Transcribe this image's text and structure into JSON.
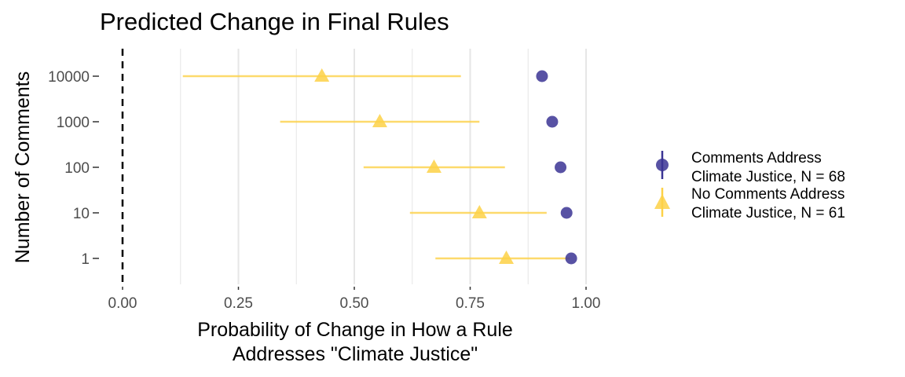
{
  "chart_data": {
    "type": "scatter",
    "title": "Predicted Change in Final Rules",
    "xlabel_lines": [
      "Probability of Change in How a Rule",
      "Addresses \"Climate Justice\""
    ],
    "ylabel": "Number of Comments",
    "xlim": [
      0,
      1
    ],
    "x_ticks": [
      {
        "value": 0.0,
        "label": "0.00"
      },
      {
        "value": 0.25,
        "label": "0.25"
      },
      {
        "value": 0.5,
        "label": "0.50"
      },
      {
        "value": 0.75,
        "label": "0.75"
      },
      {
        "value": 1.0,
        "label": "1.00"
      }
    ],
    "categories": [
      "10000",
      "1000",
      "100",
      "10",
      "1"
    ],
    "reference_line": {
      "x": 0,
      "style": "dashed"
    },
    "grid": "vertical",
    "legend_position": "right",
    "series": [
      {
        "name_lines": [
          "Comments Address",
          "Climate Justice, N = 68"
        ],
        "marker": "circle",
        "color": "#3b3494",
        "points": [
          {
            "category": "10000",
            "value": 0.905,
            "ci": [
              0.905,
              0.905
            ]
          },
          {
            "category": "1000",
            "value": 0.927,
            "ci": [
              0.927,
              0.927
            ]
          },
          {
            "category": "100",
            "value": 0.945,
            "ci": [
              0.945,
              0.945
            ]
          },
          {
            "category": "10",
            "value": 0.958,
            "ci": [
              0.958,
              0.958
            ]
          },
          {
            "category": "1",
            "value": 0.968,
            "ci": [
              0.968,
              0.968
            ]
          }
        ]
      },
      {
        "name_lines": [
          "No Comments Address",
          "Climate Justice, N = 61"
        ],
        "marker": "triangle",
        "color": "#fdd147",
        "points": [
          {
            "category": "10000",
            "value": 0.43,
            "ci": [
              0.13,
              0.73
            ]
          },
          {
            "category": "1000",
            "value": 0.555,
            "ci": [
              0.34,
              0.77
            ]
          },
          {
            "category": "100",
            "value": 0.672,
            "ci": [
              0.52,
              0.825
            ]
          },
          {
            "category": "10",
            "value": 0.77,
            "ci": [
              0.62,
              0.915
            ]
          },
          {
            "category": "1",
            "value": 0.828,
            "ci": [
              0.675,
              0.965
            ]
          }
        ]
      }
    ]
  }
}
